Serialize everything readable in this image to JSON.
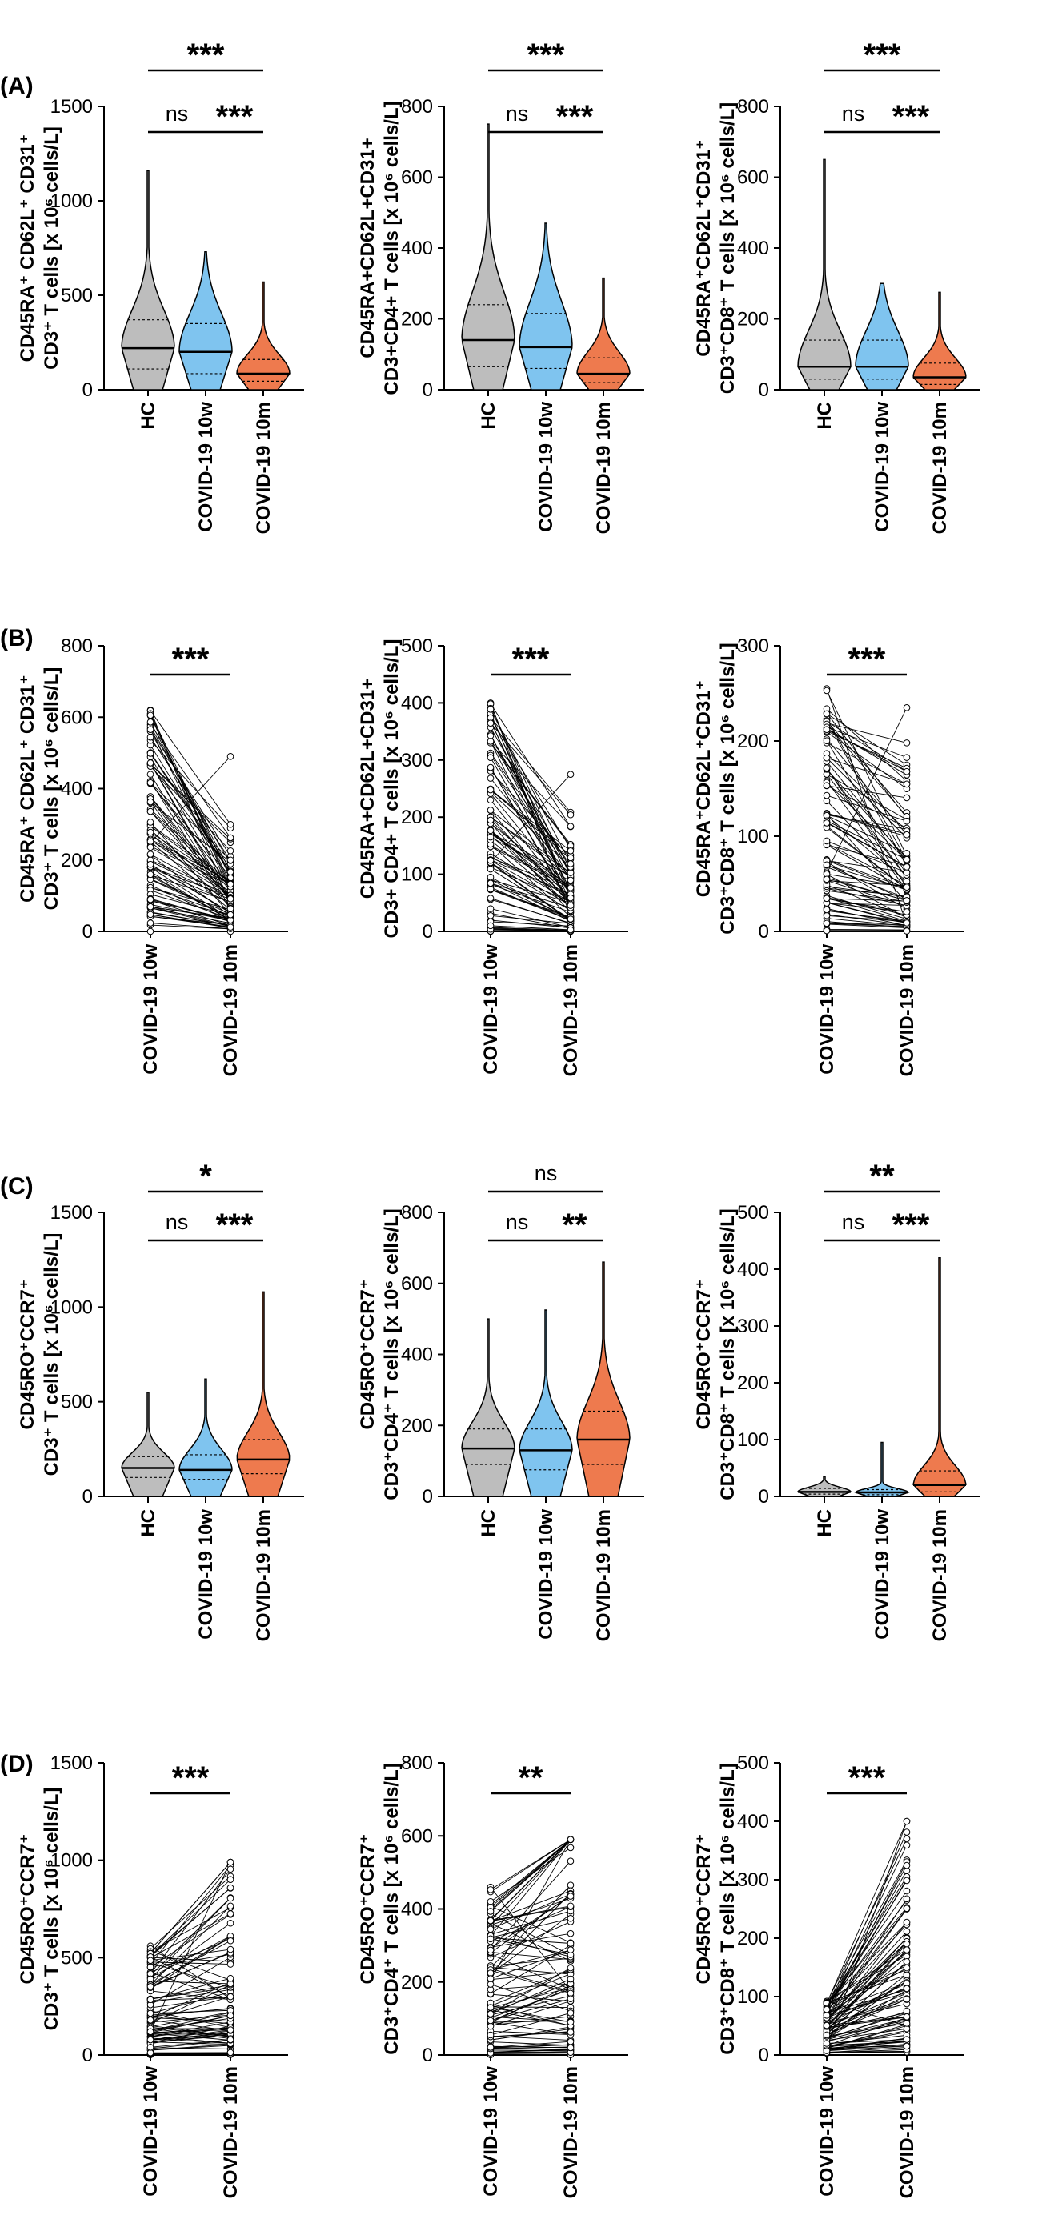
{
  "colors": {
    "hc": "#bdbdbd",
    "w10": "#7fc4ef",
    "m10": "#ee7a4e",
    "line": "#000000"
  },
  "chart_data": [
    {
      "panel": "(A)",
      "type": "violin",
      "ylabel_l1": "CD45RA⁺ CD62L⁺ CD31⁺",
      "ylabel_l2": "CD3⁺ T cells [x 10⁶ cells/L]",
      "ylim": [
        0,
        1500
      ],
      "yticks": [
        0,
        500,
        1000,
        1500
      ],
      "categories": [
        "HC",
        "COVID-19 10w",
        "COVID-19 10m"
      ],
      "median": [
        220,
        200,
        85
      ],
      "q1": [
        110,
        85,
        45
      ],
      "q3": [
        370,
        350,
        160
      ],
      "max": [
        1160,
        730,
        570
      ],
      "comparisons": [
        {
          "from": 0,
          "to": 1,
          "label": "ns",
          "level": 1
        },
        {
          "from": 1,
          "to": 2,
          "label": "***",
          "level": 1
        },
        {
          "from": 0,
          "to": 2,
          "label": "***",
          "level": 2
        }
      ]
    },
    {
      "panel": "",
      "type": "violin",
      "ylabel_l1": "CD45RA+CD62L+CD31+",
      "ylabel_l2": "CD3+CD4+ T cells [x 10⁶ cells/L]",
      "ylim": [
        0,
        800
      ],
      "yticks": [
        0,
        200,
        400,
        600,
        800
      ],
      "categories": [
        "HC",
        "COVID-19 10w",
        "COVID-19 10m"
      ],
      "median": [
        140,
        120,
        45
      ],
      "q1": [
        65,
        60,
        20
      ],
      "q3": [
        240,
        215,
        90
      ],
      "max": [
        750,
        470,
        315
      ],
      "comparisons": [
        {
          "from": 0,
          "to": 1,
          "label": "ns",
          "level": 1
        },
        {
          "from": 1,
          "to": 2,
          "label": "***",
          "level": 1
        },
        {
          "from": 0,
          "to": 2,
          "label": "***",
          "level": 2
        }
      ]
    },
    {
      "panel": "",
      "type": "violin",
      "ylabel_l1": "CD45RA⁺CD62L⁺CD31⁺",
      "ylabel_l2": "CD3⁺CD8⁺ T cells [x 10⁶ cells/L]",
      "ylim": [
        0,
        800
      ],
      "yticks": [
        0,
        200,
        400,
        600,
        800
      ],
      "categories": [
        "HC",
        "COVID-19 10w",
        "COVID-19 10m"
      ],
      "median": [
        65,
        65,
        35
      ],
      "q1": [
        30,
        30,
        15
      ],
      "q3": [
        140,
        140,
        75
      ],
      "max": [
        650,
        300,
        275
      ],
      "comparisons": [
        {
          "from": 0,
          "to": 1,
          "label": "ns",
          "level": 1
        },
        {
          "from": 1,
          "to": 2,
          "label": "***",
          "level": 1
        },
        {
          "from": 0,
          "to": 2,
          "label": "***",
          "level": 2
        }
      ]
    },
    {
      "panel": "(B)",
      "type": "paired",
      "ylabel_l1": "CD45RA⁺ CD62L⁺ CD31⁺",
      "ylabel_l2": "CD3⁺ T cells [x 10⁶ cells/L]",
      "ylim": [
        0,
        800
      ],
      "yticks": [
        0,
        200,
        400,
        600,
        800
      ],
      "categories": [
        "COVID-19 10w",
        "COVID-19 10m"
      ],
      "max": [
        620,
        490
      ],
      "typical": [
        230,
        80
      ],
      "label": "***"
    },
    {
      "panel": "",
      "type": "paired",
      "ylabel_l1": "CD45RA+CD62L+CD31+",
      "ylabel_l2": "CD3+ CD4+ T cells [x 10⁶ cells/L]",
      "ylim": [
        0,
        500
      ],
      "yticks": [
        0,
        100,
        200,
        300,
        400,
        500
      ],
      "categories": [
        "COVID-19 10w",
        "COVID-19 10m"
      ],
      "max": [
        400,
        275
      ],
      "typical": [
        140,
        50
      ],
      "label": "***"
    },
    {
      "panel": "",
      "type": "paired",
      "ylabel_l1": "CD45RA⁺CD62L⁺CD31⁺",
      "ylabel_l2": "CD3⁺CD8⁺ T cells [x 10⁶ cells/L]",
      "ylim": [
        0,
        300
      ],
      "yticks": [
        0,
        100,
        200,
        300
      ],
      "categories": [
        "COVID-19 10w",
        "COVID-19 10m"
      ],
      "max": [
        255,
        235
      ],
      "typical": [
        95,
        55
      ],
      "label": "***"
    },
    {
      "panel": "(C)",
      "type": "violin",
      "ylabel_l1": "CD45RO⁺CCR7⁺",
      "ylabel_l2": "CD3⁺ T cells [x 10⁶ cells/L]",
      "ylim": [
        0,
        1500
      ],
      "yticks": [
        0,
        500,
        1000,
        1500
      ],
      "categories": [
        "HC",
        "COVID-19 10w",
        "COVID-19 10m"
      ],
      "median": [
        150,
        140,
        195
      ],
      "q1": [
        100,
        90,
        120
      ],
      "q3": [
        210,
        220,
        300
      ],
      "max": [
        550,
        620,
        1080
      ],
      "comparisons": [
        {
          "from": 0,
          "to": 1,
          "label": "ns",
          "level": 1
        },
        {
          "from": 1,
          "to": 2,
          "label": "***",
          "level": 1
        },
        {
          "from": 0,
          "to": 2,
          "label": "*",
          "level": 2
        }
      ]
    },
    {
      "panel": "",
      "type": "violin",
      "ylabel_l1": "CD45RO⁺CCR7⁺",
      "ylabel_l2": "CD3⁺CD4⁺ T cells [x 10⁶ cells/L]",
      "ylim": [
        0,
        800
      ],
      "yticks": [
        0,
        200,
        400,
        600,
        800
      ],
      "categories": [
        "HC",
        "COVID-19 10w",
        "COVID-19 10m"
      ],
      "median": [
        135,
        130,
        160
      ],
      "q1": [
        90,
        75,
        90
      ],
      "q3": [
        190,
        190,
        240
      ],
      "max": [
        500,
        525,
        660
      ],
      "comparisons": [
        {
          "from": 0,
          "to": 1,
          "label": "ns",
          "level": 1
        },
        {
          "from": 1,
          "to": 2,
          "label": "**",
          "level": 1
        },
        {
          "from": 0,
          "to": 2,
          "label": "ns",
          "level": 2
        }
      ]
    },
    {
      "panel": "",
      "type": "violin",
      "ylabel_l1": "CD45RO⁺CCR7⁺",
      "ylabel_l2": "CD3⁺CD8⁺ T cells [x 10⁶ cells/L]",
      "ylim": [
        0,
        500
      ],
      "yticks": [
        0,
        100,
        200,
        300,
        400,
        500
      ],
      "categories": [
        "HC",
        "COVID-19 10w",
        "COVID-19 10m"
      ],
      "median": [
        8,
        7,
        20
      ],
      "q1": [
        4,
        3,
        8
      ],
      "q3": [
        14,
        12,
        45
      ],
      "max": [
        35,
        95,
        420
      ],
      "comparisons": [
        {
          "from": 0,
          "to": 1,
          "label": "ns",
          "level": 1
        },
        {
          "from": 1,
          "to": 2,
          "label": "***",
          "level": 1
        },
        {
          "from": 0,
          "to": 2,
          "label": "**",
          "level": 2
        }
      ]
    },
    {
      "panel": "(D)",
      "type": "paired",
      "ylabel_l1": "CD45RO⁺CCR7⁺",
      "ylabel_l2": "CD3⁺ T cells [x 10⁶ cells/L]",
      "ylim": [
        0,
        1500
      ],
      "yticks": [
        0,
        500,
        1000,
        1500
      ],
      "categories": [
        "COVID-19 10w",
        "COVID-19 10m"
      ],
      "max": [
        560,
        990
      ],
      "typical": [
        150,
        220
      ],
      "label": "***"
    },
    {
      "panel": "",
      "type": "paired",
      "ylabel_l1": "CD45RO⁺CCR7⁺",
      "ylabel_l2": "CD3⁺CD4⁺ T cells [x 10⁶ cells/L]",
      "ylim": [
        0,
        800
      ],
      "yticks": [
        0,
        200,
        400,
        600,
        800
      ],
      "categories": [
        "COVID-19 10w",
        "COVID-19 10m"
      ],
      "max": [
        460,
        590
      ],
      "typical": [
        130,
        180
      ],
      "label": "**"
    },
    {
      "panel": "",
      "type": "paired",
      "ylabel_l1": "CD45RO⁺CCR7⁺",
      "ylabel_l2": "CD3⁺CD8⁺ T cells [x 10⁶ cells/L]",
      "ylim": [
        0,
        500
      ],
      "yticks": [
        0,
        100,
        200,
        300,
        400,
        500
      ],
      "categories": [
        "COVID-19 10w",
        "COVID-19 10m"
      ],
      "max": [
        92,
        400
      ],
      "typical": [
        10,
        30
      ],
      "label": "***"
    }
  ]
}
